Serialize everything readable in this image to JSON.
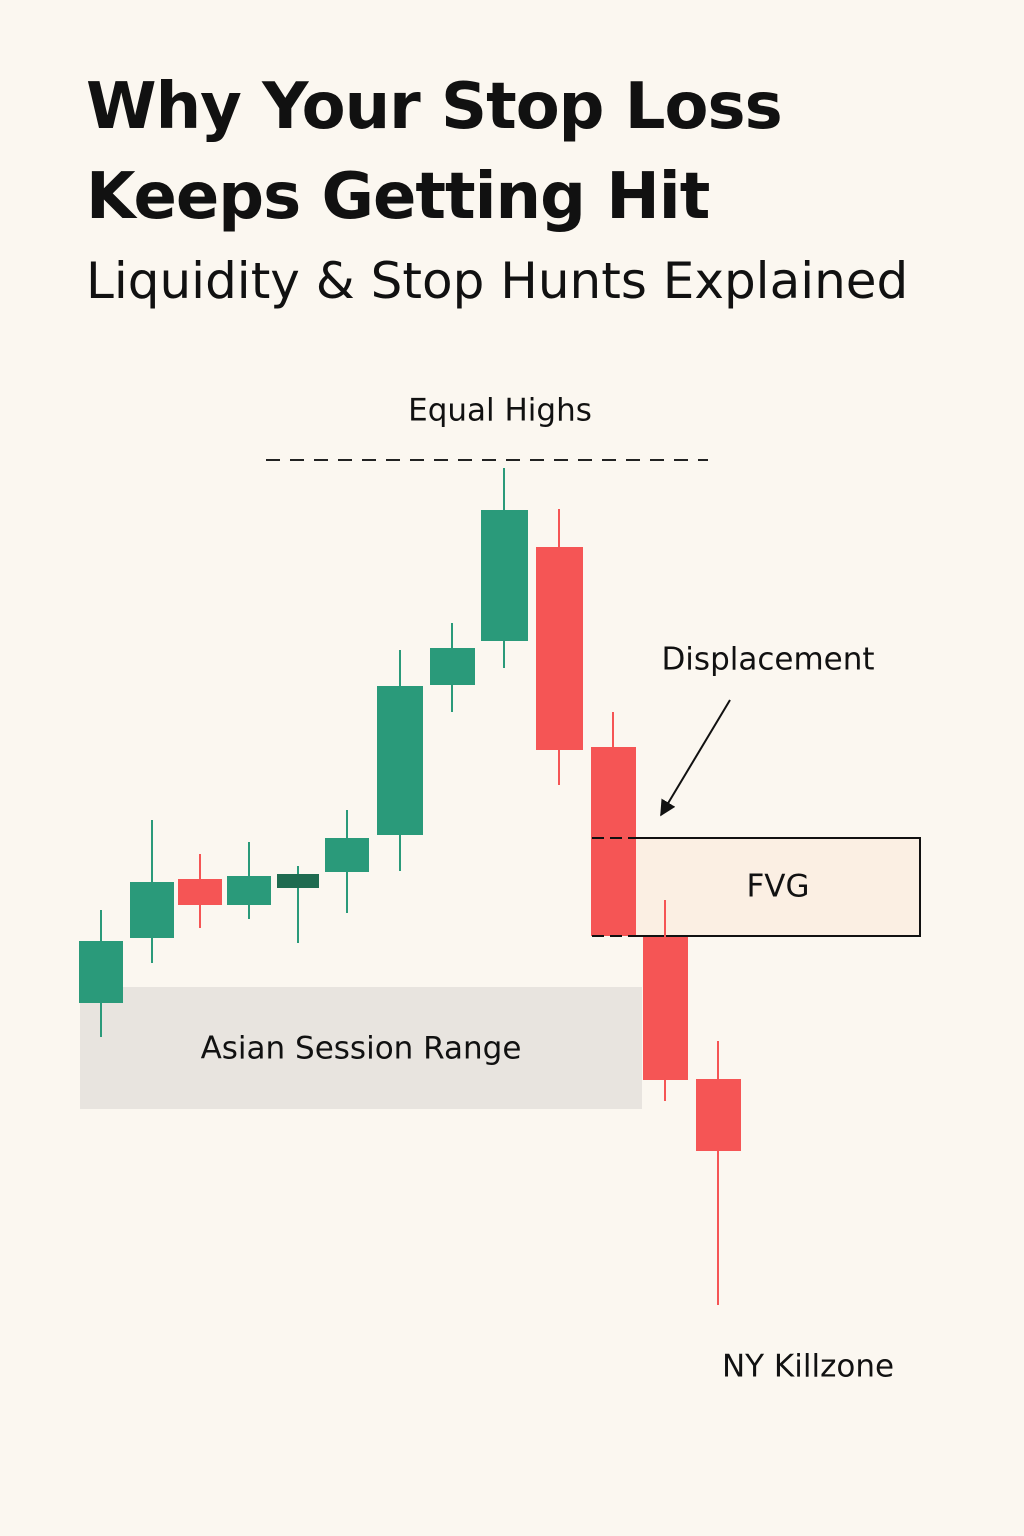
{
  "header": {
    "title_lines": [
      "Why Your Stop Loss",
      "Keeps Getting Hit"
    ],
    "subtitle": "Liquidity & Stop Hunts Explained"
  },
  "labels": {
    "equal_highs": "Equal Highs",
    "displacement": "Displacement",
    "fvg": "FVG",
    "asian_range": "Asian Session Range",
    "ny_killzone": "NY Killzone"
  }
}
